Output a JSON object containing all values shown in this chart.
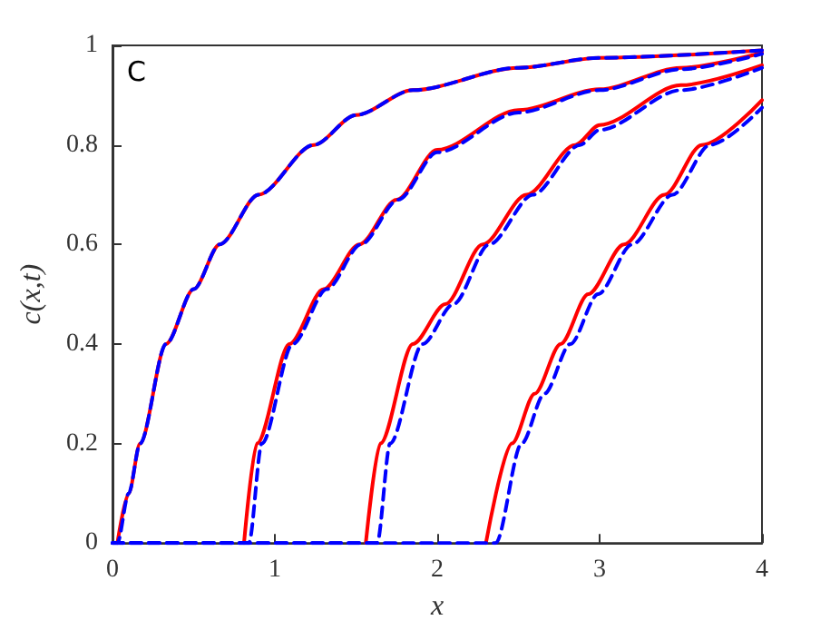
{
  "chart_data": {
    "type": "line",
    "xlabel": "x",
    "ylabel": "c(x,t)",
    "annotations": [
      "C"
    ],
    "xlim": [
      0,
      4
    ],
    "ylim": [
      0,
      1
    ],
    "xticks": [
      0,
      1,
      2,
      3,
      4
    ],
    "yticks": [
      0,
      0.2,
      0.4,
      0.6,
      0.8,
      1
    ],
    "marker": "none",
    "series": [
      {
        "color": "#ff0000",
        "line_style": "solid",
        "x": [
          0.03,
          0.1,
          0.17,
          0.33,
          0.5,
          0.66,
          0.9,
          1.24,
          1.5,
          1.85,
          2.5,
          3,
          4
        ],
        "values": [
          0,
          0.1,
          0.2,
          0.4,
          0.51,
          0.6,
          0.7,
          0.8,
          0.86,
          0.91,
          0.955,
          0.975,
          0.99
        ]
      },
      {
        "color": "#0000ff",
        "line_style": "dashed",
        "x": [
          0,
          0.03,
          0.1,
          0.17,
          0.33,
          0.5,
          0.66,
          0.9,
          1.24,
          1.5,
          1.85,
          2.5,
          3,
          4
        ],
        "values": [
          0,
          0,
          0.1,
          0.2,
          0.4,
          0.51,
          0.6,
          0.7,
          0.8,
          0.86,
          0.91,
          0.955,
          0.975,
          0.99
        ]
      },
      {
        "color": "#ff0000",
        "line_style": "solid",
        "x": [
          0.81,
          0.89,
          1.09,
          1.3,
          1.52,
          1.75,
          2.0,
          2.5,
          3,
          3.5,
          4
        ],
        "values": [
          0,
          0.2,
          0.4,
          0.51,
          0.6,
          0.69,
          0.79,
          0.87,
          0.912,
          0.955,
          0.985
        ]
      },
      {
        "color": "#0000ff",
        "line_style": "dashed",
        "x": [
          0,
          0.84,
          0.92,
          1.11,
          1.32,
          1.53,
          1.76,
          2.0,
          2.5,
          3,
          3.5,
          4
        ],
        "values": [
          0,
          0,
          0.2,
          0.4,
          0.51,
          0.6,
          0.69,
          0.785,
          0.865,
          0.91,
          0.952,
          0.983
        ]
      },
      {
        "color": "#ff0000",
        "line_style": "solid",
        "x": [
          1.56,
          1.65,
          1.85,
          2.05,
          2.28,
          2.55,
          2.85,
          3,
          3.5,
          4
        ],
        "values": [
          0,
          0.2,
          0.4,
          0.48,
          0.6,
          0.7,
          0.8,
          0.84,
          0.92,
          0.96
        ]
      },
      {
        "color": "#0000ff",
        "line_style": "dashed",
        "x": [
          0,
          1.63,
          1.71,
          1.91,
          2.1,
          2.32,
          2.59,
          2.88,
          3,
          3.5,
          4
        ],
        "values": [
          0,
          0,
          0.2,
          0.4,
          0.48,
          0.6,
          0.7,
          0.8,
          0.83,
          0.91,
          0.955
        ]
      },
      {
        "color": "#ff0000",
        "line_style": "solid",
        "x": [
          2.3,
          2.46,
          2.6,
          2.76,
          2.93,
          3.15,
          3.4,
          3.63,
          4
        ],
        "values": [
          0,
          0.2,
          0.3,
          0.4,
          0.5,
          0.6,
          0.7,
          0.8,
          0.89
        ]
      },
      {
        "color": "#0000ff",
        "line_style": "dashed",
        "x": [
          0,
          2.36,
          2.52,
          2.66,
          2.82,
          2.99,
          3.2,
          3.45,
          3.68,
          4
        ],
        "values": [
          0,
          0,
          0.2,
          0.3,
          0.4,
          0.5,
          0.6,
          0.7,
          0.8,
          0.875
        ]
      }
    ]
  }
}
